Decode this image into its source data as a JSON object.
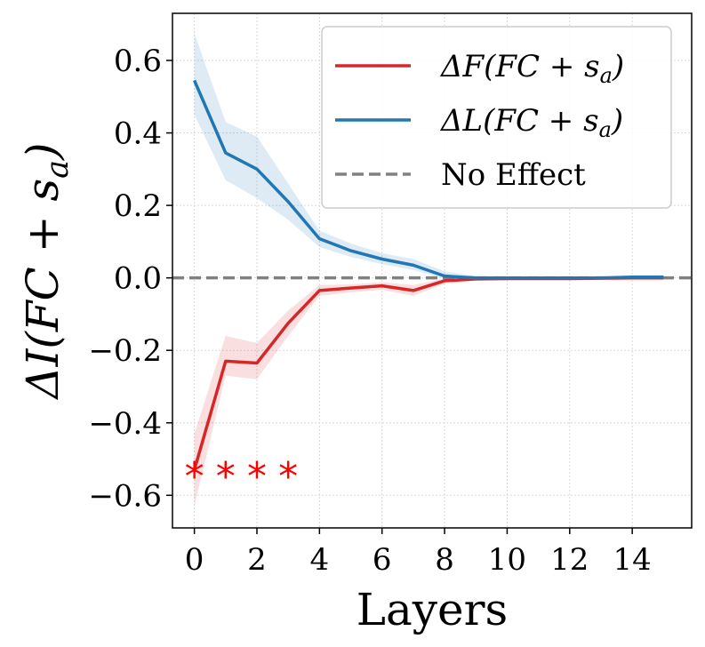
{
  "chart_data": {
    "type": "line",
    "title": "",
    "xlabel": "Layers",
    "ylabel": "ΔI(FC + s_a)",
    "ylabel_parts": {
      "prefix": "ΔI(FC + s",
      "sub": "a",
      "suffix": ")"
    },
    "xlim": [
      -0.7,
      15.9
    ],
    "ylim": [
      -0.69,
      0.73
    ],
    "grid": true,
    "x_ticks": [
      0,
      2,
      4,
      6,
      8,
      10,
      12,
      14
    ],
    "x_tick_labels": [
      "0",
      "2",
      "4",
      "6",
      "8",
      "10",
      "12",
      "14"
    ],
    "y_ticks": [
      0.6,
      0.4,
      0.2,
      0.0,
      -0.2,
      -0.4,
      -0.6
    ],
    "y_tick_labels": [
      "0.6",
      "0.4",
      "0.2",
      "0.0",
      "−0.2",
      "−0.4",
      "−0.6"
    ],
    "x": [
      0,
      1,
      2,
      3,
      4,
      5,
      6,
      7,
      8,
      9,
      10,
      11,
      12,
      13,
      14,
      15
    ],
    "series": [
      {
        "name": "ΔF(FC + s_a)",
        "label_parts": {
          "prefix": "ΔF(FC + s",
          "sub": "a",
          "suffix": ")"
        },
        "color": "#d62728",
        "values": [
          -0.53,
          -0.23,
          -0.235,
          -0.125,
          -0.035,
          -0.028,
          -0.022,
          -0.035,
          -0.008,
          -0.003,
          -0.002,
          -0.002,
          -0.002,
          -0.001,
          0.0,
          0.0
        ],
        "lower": [
          -0.63,
          -0.27,
          -0.28,
          -0.16,
          -0.05,
          -0.04,
          -0.033,
          -0.05,
          -0.016,
          -0.008,
          -0.006,
          -0.006,
          -0.005,
          -0.004,
          -0.003,
          -0.003
        ],
        "upper": [
          -0.43,
          -0.16,
          -0.18,
          -0.09,
          -0.02,
          -0.018,
          -0.012,
          -0.02,
          -0.002,
          0.001,
          0.001,
          0.001,
          0.001,
          0.001,
          0.002,
          0.002
        ]
      },
      {
        "name": "ΔL(FC + s_a)",
        "label_parts": {
          "prefix": "ΔL(FC + s",
          "sub": "a",
          "suffix": ")"
        },
        "color": "#1f77b4",
        "values": [
          0.545,
          0.345,
          0.3,
          0.21,
          0.108,
          0.075,
          0.052,
          0.035,
          0.005,
          0.0,
          0.0,
          0.0,
          0.0,
          0.0,
          0.002,
          0.002
        ],
        "lower": [
          0.45,
          0.27,
          0.22,
          0.16,
          0.085,
          0.058,
          0.038,
          0.022,
          -0.002,
          -0.004,
          -0.004,
          -0.004,
          -0.004,
          -0.003,
          -0.002,
          -0.002
        ],
        "upper": [
          0.675,
          0.43,
          0.39,
          0.26,
          0.13,
          0.095,
          0.068,
          0.052,
          0.018,
          0.005,
          0.004,
          0.004,
          0.004,
          0.004,
          0.005,
          0.005
        ]
      }
    ],
    "reference_line": {
      "name": "No Effect",
      "y": 0.0,
      "color": "#808080",
      "style": "dashed"
    },
    "annotations": [
      {
        "text": "*",
        "x": 0,
        "y": -0.53,
        "color": "#ff0000"
      },
      {
        "text": "*",
        "x": 1,
        "y": -0.53,
        "color": "#ff0000"
      },
      {
        "text": "*",
        "x": 2,
        "y": -0.53,
        "color": "#ff0000"
      },
      {
        "text": "*",
        "x": 3,
        "y": -0.53,
        "color": "#ff0000"
      }
    ],
    "legend_position": "top-right",
    "legend_items": [
      {
        "key": "f",
        "label": "ΔF(FC + s_a)"
      },
      {
        "key": "l",
        "label": "ΔL(FC + s_a)"
      },
      {
        "key": "ref",
        "label": "No Effect"
      }
    ]
  }
}
